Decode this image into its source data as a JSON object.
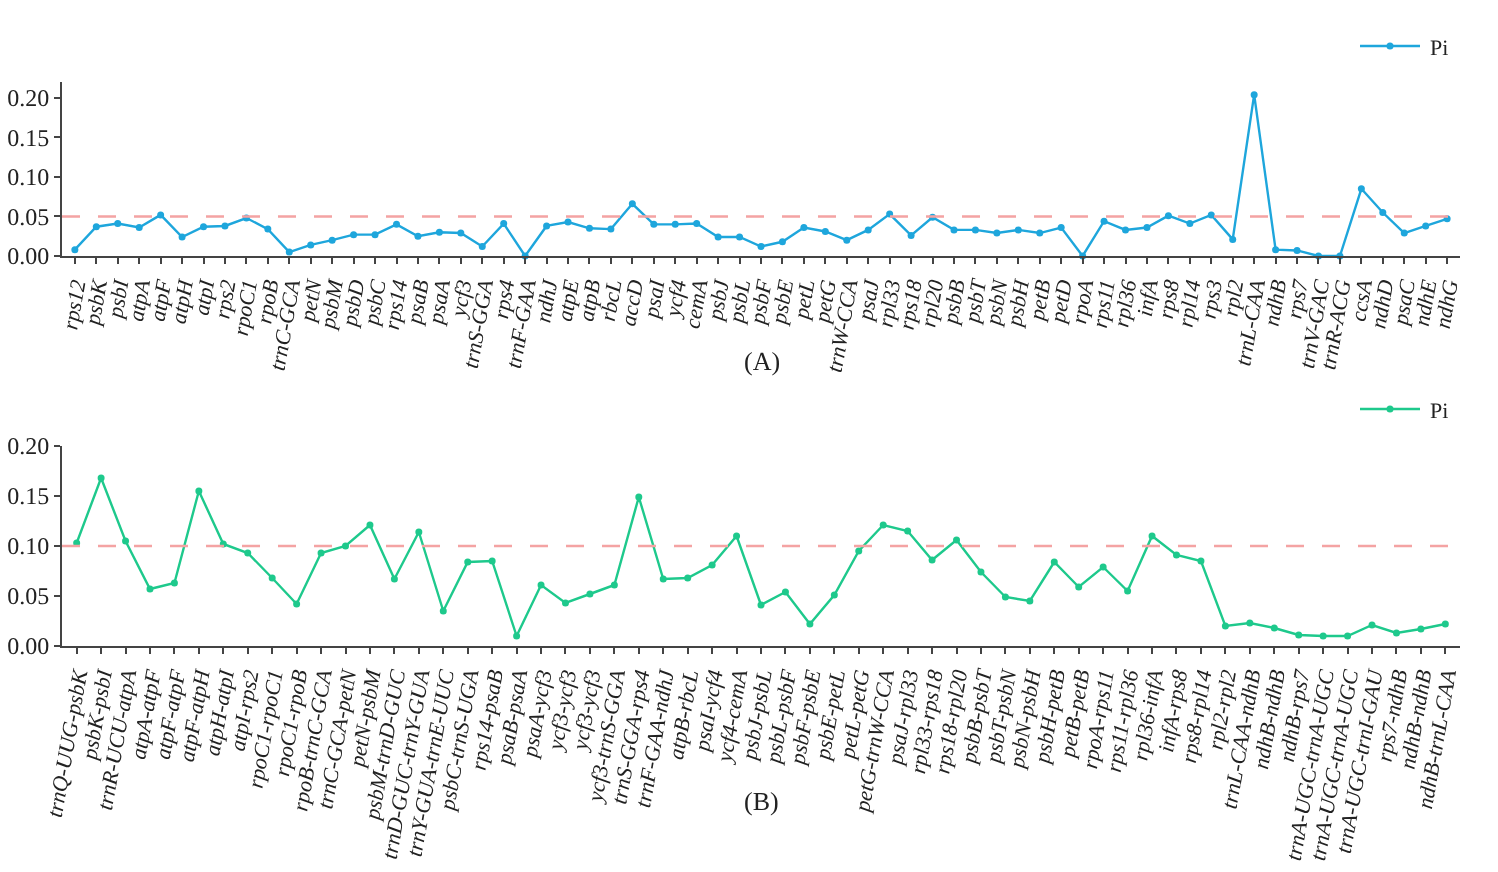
{
  "chart_data": [
    {
      "type": "line",
      "annotations": [
        "(A)"
      ],
      "categories": [
        "rps12",
        "psbK",
        "psbI",
        "atpA",
        "atpF",
        "atpH",
        "atpI",
        "rps2",
        "rpoC1",
        "rpoB",
        "trnC-GCA",
        "petN",
        "psbM",
        "psbD",
        "psbC",
        "rps14",
        "psaB",
        "psaA",
        "ycf3",
        "trnS-GGA",
        "rps4",
        "trnF-GAA",
        "ndhJ",
        "atpE",
        "atpB",
        "rbcL",
        "accD",
        "psaI",
        "ycf4",
        "cemA",
        "psbJ",
        "psbL",
        "psbF",
        "psbE",
        "petL",
        "petG",
        "trnW-CCA",
        "psaJ",
        "rpl33",
        "rps18",
        "rpl20",
        "psbB",
        "psbT",
        "psbN",
        "psbH",
        "petB",
        "petD",
        "rpoA",
        "rps11",
        "rpl36",
        "infA",
        "rps8",
        "rpl14",
        "rps3",
        "rpl2",
        "trnL-CAA",
        "ndhB",
        "rps7",
        "trnV-GAC",
        "trnR-ACG",
        "ccsA",
        "ndhD",
        "psaC",
        "ndhE",
        "ndhG"
      ],
      "series": [
        {
          "name": "Pi",
          "color": "#1ea6dc",
          "values": [
            0.008,
            0.037,
            0.041,
            0.036,
            0.052,
            0.024,
            0.037,
            0.038,
            0.048,
            0.034,
            0.005,
            0.014,
            0.02,
            0.027,
            0.027,
            0.04,
            0.025,
            0.03,
            0.029,
            0.012,
            0.041,
            0.0,
            0.038,
            0.043,
            0.035,
            0.034,
            0.066,
            0.04,
            0.04,
            0.041,
            0.024,
            0.024,
            0.012,
            0.018,
            0.036,
            0.031,
            0.02,
            0.033,
            0.053,
            0.026,
            0.049,
            0.033,
            0.033,
            0.029,
            0.033,
            0.029,
            0.036,
            0.0,
            0.044,
            0.033,
            0.036,
            0.051,
            0.041,
            0.052,
            0.021,
            0.204,
            0.008,
            0.007,
            0.0,
            0.0,
            0.085,
            0.055,
            0.029,
            0.038,
            0.047
          ]
        }
      ],
      "ylim": [
        0,
        0.22
      ],
      "yticks": [
        {
          "value": 0,
          "label": "0.00"
        },
        {
          "value": 0.05,
          "label": "0.05"
        },
        {
          "value": 0.1,
          "label": "0.10"
        },
        {
          "value": 0.15,
          "label": "0.15"
        },
        {
          "value": 0.2,
          "label": "0.20"
        }
      ],
      "ref_lines": [
        {
          "axis": "y",
          "value": 0.05,
          "color": "#f4a3a3",
          "line_style": "dashed"
        }
      ],
      "grid": false,
      "legend": "top right",
      "marker": "circle",
      "line_style": "solid"
    },
    {
      "type": "line",
      "annotations": [
        "(B)"
      ],
      "categories": [
        "trnQ-UUG-psbK",
        "psbK-psbI",
        "trnR-UCU-atpA",
        "atpA-atpF",
        "atpF-atpF",
        "atpF-atpH",
        "atpH-atpI",
        "atpI-rps2",
        "rpoC1-rpoC1",
        "rpoC1-rpoB",
        "rpoB-trnC-GCA",
        "trnC-GCA-petN",
        "petN-psbM",
        "psbM-trnD-GUC",
        "trnD-GUC-trnY-GUA",
        "trnY-GUA-trnE-UUC",
        "psbC-trnS-UGA",
        "rps14-psaB",
        "psaB-psaA",
        "psaA-ycf3",
        "ycf3-ycf3",
        "ycf3-ycf3",
        "ycf3-trnS-GGA",
        "trnS-GGA-rps4",
        "trnF-GAA-ndhJ",
        "atpB-rbcL",
        "psaI-ycf4",
        "ycf4-cemA",
        "psbJ-psbL",
        "psbL-psbF",
        "psbF-psbE",
        "psbE-petL",
        "petL-petG",
        "petG-trnW-CCA",
        "psaJ-rpl33",
        "rpl33-rps18",
        "rps18-rpl20",
        "psbB-psbT",
        "psbT-psbN",
        "psbN-psbH",
        "psbH-petB",
        "petB-petB",
        "rpoA-rps11",
        "rps11-rpl36",
        "rpl36-infA",
        "infA-rps8",
        "rps8-rpl14",
        "rpl2-rpl2",
        "trnL-CAA-ndhB",
        "ndhB-ndhB",
        "ndhB-rps7",
        "trnA-UGC-trnA-UGC",
        "trnA-UGC-trnA-UGC",
        "trnA-UGC-trnI-GAU",
        "rps7-ndhB",
        "ndhB-ndhB",
        "ndhB-trnL-CAA"
      ],
      "series": [
        {
          "name": "Pi",
          "color": "#1ec98c",
          "values": [
            0.103,
            0.168,
            0.105,
            0.057,
            0.063,
            0.155,
            0.102,
            0.093,
            0.068,
            0.042,
            0.093,
            0.1,
            0.121,
            0.067,
            0.114,
            0.035,
            0.084,
            0.085,
            0.01,
            0.061,
            0.043,
            0.052,
            0.061,
            0.149,
            0.067,
            0.068,
            0.081,
            0.11,
            0.041,
            0.054,
            0.022,
            0.051,
            0.095,
            0.121,
            0.115,
            0.086,
            0.106,
            0.074,
            0.049,
            0.045,
            0.084,
            0.059,
            0.079,
            0.055,
            0.11,
            0.091,
            0.085,
            0.02,
            0.023,
            0.018,
            0.011,
            0.01,
            0.01,
            0.021,
            0.013,
            0.017,
            0.022
          ]
        }
      ],
      "ylim": [
        0,
        0.2
      ],
      "yticks": [
        {
          "value": 0,
          "label": "0.00"
        },
        {
          "value": 0.05,
          "label": "0.05"
        },
        {
          "value": 0.1,
          "label": "0.10"
        },
        {
          "value": 0.15,
          "label": "0.15"
        },
        {
          "value": 0.2,
          "label": "0.20"
        }
      ],
      "ref_lines": [
        {
          "axis": "y",
          "value": 0.1,
          "color": "#f4a3a3",
          "line_style": "dashed"
        }
      ],
      "grid": false,
      "legend": "top right",
      "marker": "circle",
      "line_style": "solid"
    }
  ]
}
